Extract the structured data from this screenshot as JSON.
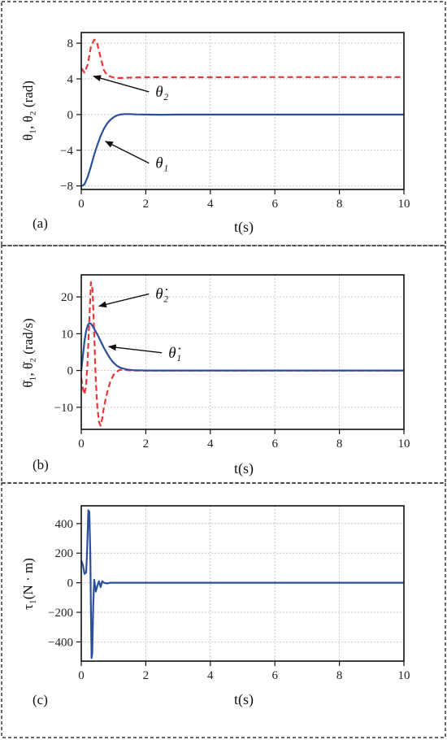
{
  "chart_data": [
    {
      "type": "line",
      "panel_label": "(a)",
      "ylabel": "θ₁, θ₂ (rad)",
      "xlabel": "t(s)",
      "xlim": [
        0,
        10
      ],
      "ylim": [
        -8.4,
        9.2
      ],
      "xticks": [
        0,
        2,
        4,
        6,
        8,
        10
      ],
      "yticks": [
        -8,
        -4,
        0,
        4,
        8
      ],
      "grid": true,
      "series": [
        {
          "name": "θ₂",
          "color": "#e8373a",
          "style": "dashed",
          "x": [
            0,
            0.1,
            0.2,
            0.3,
            0.4,
            0.45,
            0.5,
            0.6,
            0.7,
            0.8,
            1.0,
            1.2,
            1.5,
            2,
            3,
            4,
            5,
            6,
            7,
            8,
            9,
            10
          ],
          "y": [
            5.2,
            4.7,
            5.6,
            7.6,
            8.4,
            8.3,
            7.9,
            6.4,
            5.0,
            4.4,
            4.15,
            4.1,
            4.15,
            4.18,
            4.18,
            4.18,
            4.2,
            4.2,
            4.2,
            4.2,
            4.2,
            4.2
          ]
        },
        {
          "name": "θ₁",
          "color": "#2c4f9c",
          "style": "solid",
          "x": [
            0,
            0.05,
            0.1,
            0.2,
            0.3,
            0.4,
            0.5,
            0.6,
            0.7,
            0.8,
            0.9,
            1.0,
            1.1,
            1.2,
            1.35,
            1.5,
            1.7,
            2,
            2.5,
            3,
            4,
            5,
            6,
            7,
            8,
            9,
            10
          ],
          "y": [
            -8.0,
            -7.95,
            -7.8,
            -7.0,
            -5.8,
            -4.5,
            -3.4,
            -2.4,
            -1.6,
            -1.0,
            -0.6,
            -0.3,
            -0.1,
            0.0,
            0.05,
            0.05,
            0.02,
            0.0,
            -0.02,
            0.0,
            0.0,
            0.0,
            0.0,
            0.0,
            0.0,
            0.0,
            0.0
          ]
        }
      ],
      "annotations": [
        {
          "text": "θ₂",
          "x": 2.3,
          "y": 2.0,
          "arrow_to": [
            0.38,
            4.3
          ]
        },
        {
          "text": "θ₁",
          "x": 2.3,
          "y": -6.0,
          "arrow_to": [
            0.75,
            -3.0
          ]
        }
      ]
    },
    {
      "type": "line",
      "panel_label": "(b)",
      "ylabel": "θ̇₁, θ̇₂ (rad/s)",
      "xlabel": "t(s)",
      "xlim": [
        0,
        10
      ],
      "ylim": [
        -16,
        26
      ],
      "xticks": [
        0,
        2,
        4,
        6,
        8,
        10
      ],
      "yticks": [
        -10,
        0,
        10,
        20
      ],
      "grid": true,
      "series": [
        {
          "name": "θ̇₂",
          "color": "#e8373a",
          "style": "dashed",
          "x": [
            0,
            0.05,
            0.1,
            0.15,
            0.2,
            0.25,
            0.3,
            0.35,
            0.4,
            0.45,
            0.5,
            0.55,
            0.6,
            0.65,
            0.7,
            0.8,
            0.9,
            1.0,
            1.1,
            1.2,
            1.4,
            1.6,
            2,
            3,
            4,
            5,
            6,
            7,
            8,
            9,
            10
          ],
          "y": [
            -2,
            -5,
            -6.5,
            -4,
            3,
            14,
            24,
            22,
            10,
            -3,
            -10,
            -14,
            -15,
            -13,
            -10,
            -6,
            -3,
            -1.2,
            -0.3,
            0.2,
            0.1,
            0.0,
            0,
            0,
            0,
            0,
            0,
            0,
            0,
            0,
            0
          ]
        },
        {
          "name": "θ̇₁",
          "color": "#2c4f9c",
          "style": "solid",
          "x": [
            0,
            0.05,
            0.1,
            0.15,
            0.2,
            0.25,
            0.3,
            0.35,
            0.4,
            0.5,
            0.6,
            0.7,
            0.8,
            0.9,
            1.0,
            1.1,
            1.2,
            1.4,
            1.6,
            2,
            3,
            4,
            5,
            6,
            7,
            8,
            9,
            10
          ],
          "y": [
            0,
            4,
            8,
            10.8,
            12.3,
            12.9,
            12.7,
            12.1,
            11.3,
            9.8,
            8.0,
            6.2,
            4.6,
            3.2,
            2.1,
            1.3,
            0.8,
            0.3,
            0.1,
            0,
            0,
            0,
            0,
            0,
            0,
            0,
            0,
            0
          ]
        }
      ],
      "annotations": [
        {
          "text": "θ̇₂",
          "x": 2.3,
          "y": 19.5,
          "arrow_to": [
            0.55,
            17.5
          ]
        },
        {
          "text": "θ̇₁",
          "x": 2.7,
          "y": 3.5,
          "arrow_to": [
            0.85,
            6.5
          ]
        }
      ]
    },
    {
      "type": "line",
      "panel_label": "(c)",
      "ylabel": "τ₁(N · m)",
      "xlabel": "t(s)",
      "xlim": [
        0,
        10
      ],
      "ylim": [
        -530,
        520
      ],
      "xticks": [
        0,
        2,
        4,
        6,
        8,
        10
      ],
      "yticks": [
        -400,
        -200,
        0,
        200,
        400
      ],
      "grid": true,
      "series": [
        {
          "name": "",
          "color": "#2c4f9c",
          "style": "solid",
          "x": [
            0,
            0.05,
            0.1,
            0.15,
            0.18,
            0.22,
            0.25,
            0.28,
            0.3,
            0.32,
            0.34,
            0.37,
            0.4,
            0.45,
            0.5,
            0.55,
            0.6,
            0.65,
            0.7,
            0.8,
            0.9,
            1.0,
            1.2,
            1.5,
            2,
            3,
            4,
            5,
            6,
            7,
            8,
            9,
            10
          ],
          "y": [
            150,
            120,
            60,
            70,
            200,
            490,
            480,
            200,
            -200,
            -510,
            -480,
            -150,
            20,
            -60,
            -20,
            10,
            -30,
            10,
            0,
            -5,
            0,
            0,
            0,
            0,
            0,
            0,
            0,
            0,
            0,
            0,
            0,
            0,
            0
          ]
        }
      ],
      "annotations": []
    }
  ]
}
